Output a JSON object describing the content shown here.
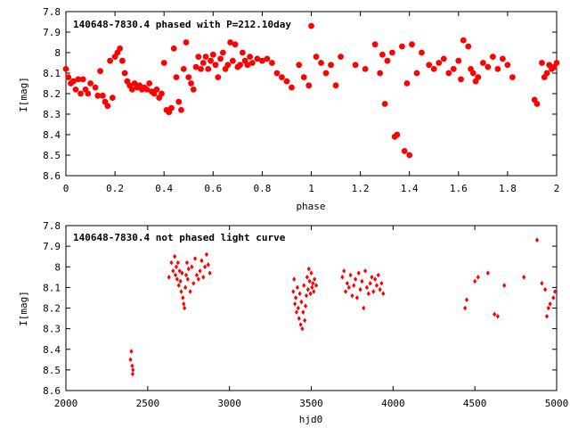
{
  "chart_data": [
    {
      "type": "scatter",
      "title": "140648-7830.4 phased with P=212.10day",
      "xlabel": "phase",
      "ylabel": "I[mag]",
      "xlim": [
        0,
        2
      ],
      "ylim": [
        7.8,
        8.6
      ],
      "y_inverted": true,
      "x_ticks": [
        "0",
        "0.2",
        "0.4",
        "0.6",
        "0.8",
        "1",
        "1.2",
        "1.4",
        "1.6",
        "1.8",
        "2"
      ],
      "y_ticks": [
        "7.8",
        "7.9",
        "8",
        "8.1",
        "8.2",
        "8.3",
        "8.4",
        "8.5",
        "8.6"
      ],
      "marker_color": "#ff0000",
      "marker": "filled-circle",
      "series": [
        {
          "x": [
            0.0,
            0.01,
            0.02,
            0.03,
            0.04,
            0.05,
            0.06,
            0.07,
            0.08,
            0.09,
            0.1,
            0.12,
            0.13,
            0.14,
            0.15,
            0.16,
            0.17,
            0.18,
            0.19,
            0.2,
            0.21,
            0.22,
            0.23,
            0.24,
            0.25,
            0.26,
            0.27,
            0.28,
            0.29,
            0.3,
            0.31,
            0.32,
            0.33,
            0.34,
            0.35,
            0.36,
            0.37,
            0.38,
            0.39,
            0.4,
            0.41,
            0.42,
            0.43,
            0.44,
            0.45,
            0.46,
            0.47,
            0.48,
            0.49,
            0.5,
            0.51,
            0.52,
            0.53,
            0.54,
            0.55,
            0.56,
            0.57,
            0.58,
            0.59,
            0.6,
            0.61,
            0.62,
            0.63,
            0.64,
            0.65,
            0.66,
            0.67,
            0.68,
            0.69,
            0.7,
            0.71,
            0.72,
            0.73,
            0.74,
            0.75,
            0.76,
            0.78,
            0.8,
            0.82,
            0.84,
            0.86,
            0.88,
            0.9,
            0.92,
            0.95,
            0.97,
            0.99,
            1.0,
            1.02,
            1.04,
            1.06,
            1.08,
            1.1,
            1.12,
            1.18,
            1.22,
            1.26,
            1.28,
            1.29,
            1.3,
            1.31,
            1.33,
            1.34,
            1.35,
            1.37,
            1.38,
            1.39,
            1.4,
            1.41,
            1.43,
            1.45,
            1.48,
            1.5,
            1.52,
            1.54,
            1.56,
            1.58,
            1.6,
            1.61,
            1.62,
            1.64,
            1.65,
            1.66,
            1.67,
            1.68,
            1.7,
            1.72,
            1.74,
            1.76,
            1.78,
            1.8,
            1.82,
            1.91,
            1.92,
            1.94,
            1.95,
            1.96,
            1.97,
            1.98,
            1.99,
            2.0
          ],
          "y": [
            8.08,
            8.12,
            8.15,
            8.14,
            8.18,
            8.13,
            8.2,
            8.13,
            8.18,
            8.2,
            8.15,
            8.17,
            8.21,
            8.09,
            8.21,
            8.24,
            8.26,
            8.04,
            8.22,
            8.02,
            8.0,
            7.98,
            8.04,
            8.1,
            8.14,
            8.16,
            8.18,
            8.15,
            8.17,
            8.16,
            8.18,
            8.17,
            8.18,
            8.15,
            8.19,
            8.2,
            8.18,
            8.22,
            8.2,
            8.05,
            8.28,
            8.29,
            8.27,
            7.98,
            8.12,
            8.24,
            8.28,
            8.08,
            7.95,
            8.12,
            8.15,
            8.18,
            8.07,
            8.02,
            8.08,
            8.05,
            8.02,
            8.08,
            8.04,
            8.01,
            8.06,
            8.12,
            8.03,
            8.0,
            8.08,
            8.06,
            7.95,
            8.04,
            7.96,
            8.07,
            8.06,
            8.0,
            8.04,
            8.06,
            8.02,
            8.05,
            8.03,
            8.04,
            8.03,
            8.05,
            8.1,
            8.12,
            8.14,
            8.17,
            8.06,
            8.12,
            8.16,
            7.87,
            8.02,
            8.05,
            8.1,
            8.06,
            8.16,
            8.02,
            8.06,
            8.08,
            7.96,
            8.1,
            8.01,
            8.25,
            8.04,
            8.0,
            8.41,
            8.4,
            7.97,
            8.48,
            8.15,
            8.5,
            7.96,
            8.1,
            8.0,
            8.06,
            8.08,
            8.05,
            8.03,
            8.1,
            8.08,
            8.04,
            8.13,
            7.94,
            7.97,
            8.08,
            8.1,
            8.14,
            8.12,
            8.05,
            8.07,
            8.02,
            8.08,
            8.03,
            8.06,
            8.12,
            8.23,
            8.25,
            8.05,
            8.12,
            8.1,
            8.06,
            8.08,
            8.07,
            8.05
          ]
        }
      ]
    },
    {
      "type": "scatter",
      "title": "140648-7830.4 not phased light curve",
      "xlabel": "hjd0",
      "ylabel": "I[mag]",
      "xlim": [
        2000,
        5000
      ],
      "ylim": [
        7.8,
        8.6
      ],
      "y_inverted": true,
      "x_ticks": [
        "2000",
        "2500",
        "3000",
        "3500",
        "4000",
        "4500",
        "5000"
      ],
      "y_ticks": [
        "7.8",
        "7.9",
        "8",
        "8.1",
        "8.2",
        "8.3",
        "8.4",
        "8.5",
        "8.6"
      ],
      "marker_color": "#ff0000",
      "marker": "filled-diamond",
      "series": [
        {
          "x": [
            2395,
            2400,
            2405,
            2408,
            2410,
            2630,
            2645,
            2655,
            2665,
            2670,
            2675,
            2680,
            2685,
            2690,
            2695,
            2700,
            2705,
            2710,
            2715,
            2720,
            2725,
            2730,
            2735,
            2740,
            2745,
            2750,
            2760,
            2770,
            2780,
            2790,
            2800,
            2810,
            2820,
            2830,
            2840,
            2850,
            2860,
            2870,
            2880,
            3390,
            3395,
            3400,
            3405,
            3410,
            3415,
            3420,
            3425,
            3430,
            3435,
            3440,
            3445,
            3450,
            3455,
            3460,
            3465,
            3470,
            3475,
            3480,
            3485,
            3490,
            3495,
            3500,
            3505,
            3510,
            3515,
            3520,
            3530,
            3690,
            3700,
            3710,
            3720,
            3730,
            3740,
            3750,
            3760,
            3770,
            3780,
            3790,
            3800,
            3810,
            3820,
            3830,
            3840,
            3850,
            3860,
            3870,
            3880,
            3890,
            3900,
            3910,
            3920,
            3930,
            3940,
            4440,
            4450,
            4500,
            4520,
            4580,
            4620,
            4640,
            4680,
            4800,
            4880,
            4910,
            4930,
            4940,
            4950,
            4960,
            4980,
            4990
          ],
          "y": [
            8.45,
            8.41,
            8.48,
            8.52,
            8.5,
            8.05,
            7.98,
            8.02,
            7.95,
            8.04,
            8.0,
            8.06,
            7.98,
            8.09,
            8.02,
            8.07,
            8.12,
            8.03,
            8.15,
            8.18,
            8.2,
            8.1,
            8.04,
            7.98,
            8.06,
            8.01,
            8.12,
            8.0,
            8.08,
            7.96,
            8.04,
            8.06,
            8.02,
            7.97,
            8.05,
            8.0,
            7.94,
            7.99,
            8.03,
            8.12,
            8.06,
            8.18,
            8.15,
            8.22,
            8.1,
            8.2,
            8.25,
            8.13,
            8.28,
            8.17,
            8.3,
            8.22,
            8.09,
            8.26,
            8.19,
            8.14,
            8.05,
            8.11,
            8.01,
            8.07,
            8.13,
            8.03,
            8.1,
            8.08,
            8.12,
            8.06,
            8.09,
            8.05,
            8.02,
            8.12,
            8.08,
            8.1,
            8.04,
            8.14,
            8.09,
            8.06,
            8.15,
            8.03,
            8.11,
            8.07,
            8.2,
            8.02,
            8.1,
            8.13,
            8.08,
            8.05,
            8.12,
            8.06,
            8.09,
            8.04,
            8.11,
            8.08,
            8.13,
            8.2,
            8.16,
            8.07,
            8.05,
            8.03,
            8.23,
            8.24,
            8.09,
            8.05,
            7.87,
            8.08,
            8.11,
            8.24,
            8.2,
            8.18,
            8.15,
            8.12
          ]
        }
      ]
    }
  ]
}
